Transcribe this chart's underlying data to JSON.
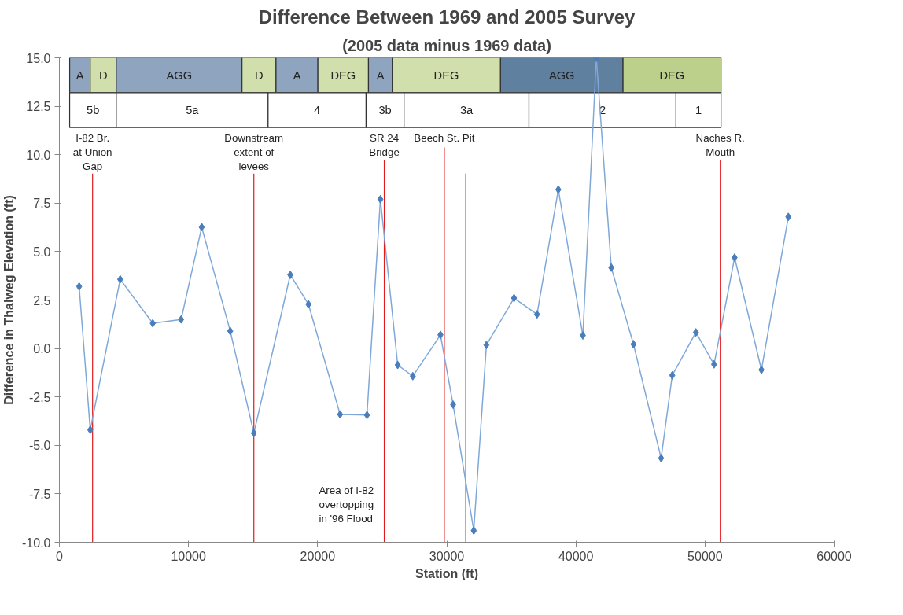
{
  "chart_data": {
    "type": "line",
    "title": "Difference Between 1969 and 2005 Survey",
    "subtitle": "(2005 data minus 1969 data)",
    "xlabel": "Station (ft)",
    "ylabel": "Difference in Thalweg Elevation (ft)",
    "x": [
      1530,
      2390,
      4710,
      7230,
      9430,
      11020,
      13230,
      15060,
      17880,
      19290,
      21740,
      23820,
      24860,
      26200,
      27370,
      29510,
      30490,
      32090,
      33070,
      35210,
      36990,
      38640,
      40540,
      41580,
      42740,
      44460,
      46600,
      47460,
      49290,
      50700,
      52290,
      54370,
      56450
    ],
    "series": [
      {
        "color": "#4a7ebb",
        "values": [
          3.2,
          -4.2,
          3.57,
          1.3,
          1.5,
          6.26,
          0.9,
          -4.37,
          3.8,
          2.28,
          -3.4,
          -3.44,
          7.7,
          -0.85,
          -1.43,
          0.7,
          -2.9,
          -9.4,
          0.18,
          2.6,
          1.76,
          8.2,
          0.67,
          15.0,
          4.17,
          0.22,
          -5.66,
          -1.39,
          0.83,
          -0.82,
          4.69,
          -1.1,
          6.79
        ]
      }
    ],
    "marker": "diamond",
    "grid": false,
    "xlim": [
      0,
      60000
    ],
    "ylim": [
      -10,
      15
    ],
    "xticks": [
      0,
      10000,
      20000,
      30000,
      40000,
      50000,
      60000
    ],
    "yticks": [
      {
        "value": -10,
        "label": "-10.0"
      },
      {
        "value": -7.5,
        "label": "-7.5"
      },
      {
        "value": -5,
        "label": "-5.0"
      },
      {
        "value": -2.5,
        "label": "-2.5"
      },
      {
        "value": 0,
        "label": "0.0"
      },
      {
        "value": 2.5,
        "label": "2.5"
      },
      {
        "value": 5,
        "label": "5.0"
      },
      {
        "value": 7.5,
        "label": "7.5"
      },
      {
        "value": 10,
        "label": "10.0"
      },
      {
        "value": 12.5,
        "label": "12.5"
      },
      {
        "value": 15,
        "label": "15.0"
      }
    ],
    "bands": [
      {
        "axis": "x",
        "from": 796,
        "to": 2388,
        "label": "A",
        "color": "#8ea4bf"
      },
      {
        "axis": "x",
        "from": 2388,
        "to": 4408,
        "label": "D",
        "color": "#d0dfab"
      },
      {
        "axis": "x",
        "from": 4408,
        "to": 14143,
        "label": "AGG",
        "color": "#8ea4bf"
      },
      {
        "axis": "x",
        "from": 14143,
        "to": 16775,
        "label": "D",
        "color": "#d0dfab"
      },
      {
        "axis": "x",
        "from": 16775,
        "to": 20020,
        "label": "A",
        "color": "#8ea4bf"
      },
      {
        "axis": "x",
        "from": 20020,
        "to": 23937,
        "label": "DEG",
        "color": "#d0dfab"
      },
      {
        "axis": "x",
        "from": 23937,
        "to": 25776,
        "label": "A",
        "color": "#8ea4bf"
      },
      {
        "axis": "x",
        "from": 25776,
        "to": 34163,
        "label": "DEG",
        "color": "#d0dfab"
      },
      {
        "axis": "x",
        "from": 34163,
        "to": 43650,
        "label": "AGG",
        "color": "#60809f"
      },
      {
        "axis": "x",
        "from": 43650,
        "to": 51240,
        "label": "DEG",
        "color": "#bcd08c"
      },
      {
        "axis": "x",
        "from": 796,
        "to": 4408,
        "label": "5b",
        "color": "#ffffff"
      },
      {
        "axis": "x",
        "from": 4408,
        "to": 16163,
        "label": "5a",
        "color": "#ffffff"
      },
      {
        "axis": "x",
        "from": 16163,
        "to": 23753,
        "label": "4",
        "color": "#ffffff"
      },
      {
        "axis": "x",
        "from": 23753,
        "to": 26692,
        "label": "3b",
        "color": "#ffffff"
      },
      {
        "axis": "x",
        "from": 26692,
        "to": 36366,
        "label": "3a",
        "color": "#ffffff"
      },
      {
        "axis": "x",
        "from": 36366,
        "to": 47752,
        "label": "2",
        "color": "#ffffff"
      },
      {
        "axis": "x",
        "from": 47752,
        "to": 51240,
        "label": "1",
        "color": "#ffffff"
      }
    ],
    "ref_lines": [
      {
        "axis": "x",
        "value": 2570,
        "color": "#e31a1c",
        "label": "I-82 Br.\nat Union\nGap"
      },
      {
        "axis": "x",
        "value": 15060,
        "color": "#e31a1c",
        "label": "Downstream\nextent of\nlevees"
      },
      {
        "axis": "x",
        "value": 25160,
        "color": "#e31a1c",
        "label": "SR 24\nBridge"
      },
      {
        "axis": "x",
        "value": 29810,
        "color": "#e31a1c",
        "label": "Beech St. Pit"
      },
      {
        "axis": "x",
        "value": 31470,
        "color": "#e31a1c"
      },
      {
        "axis": "x",
        "value": 51180,
        "color": "#e31a1c",
        "label": "Naches R.\nMouth"
      }
    ],
    "annotations": [
      "Area of I-82\novertopping\nin '96 Flood"
    ]
  }
}
